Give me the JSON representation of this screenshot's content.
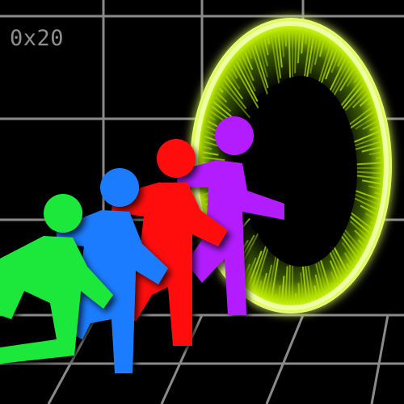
{
  "label": {
    "text": "0x20"
  },
  "colors": {
    "background": "#000000",
    "grid": "#8a8a8a",
    "portal_glow": "#c8f000",
    "portal_rim": "#f4ffb0",
    "figure_green": "#1ee83a",
    "figure_blue": "#1e7bff",
    "figure_red": "#ff0f0f",
    "figure_purple": "#b21aff"
  },
  "scene": {
    "portal": {
      "name": "glowing-portal"
    },
    "figures": [
      {
        "name": "purple-runner"
      },
      {
        "name": "red-runner"
      },
      {
        "name": "blue-runner"
      },
      {
        "name": "green-runner"
      }
    ]
  }
}
